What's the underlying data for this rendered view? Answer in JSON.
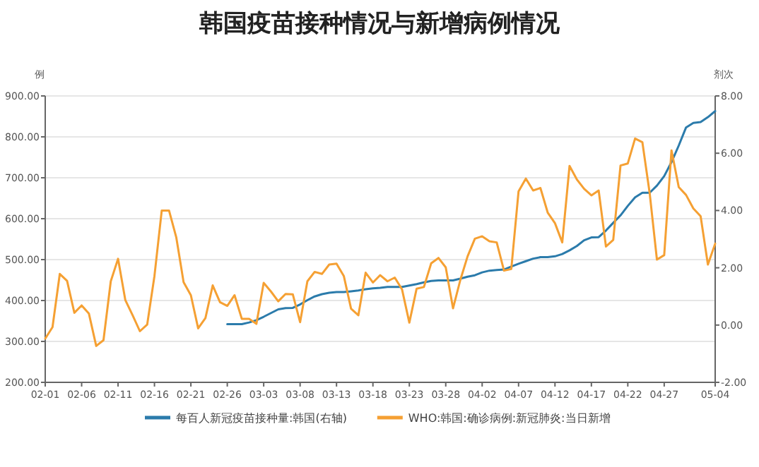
{
  "chart_data": {
    "type": "line",
    "title": "韩国疫苗接种情况与新增病例情况",
    "ylabel": "例",
    "y2label": "剂次",
    "categories": [
      "02-01",
      null,
      null,
      null,
      null,
      "02-06",
      null,
      null,
      null,
      null,
      "02-11",
      null,
      null,
      null,
      null,
      "02-16",
      null,
      null,
      null,
      null,
      "02-21",
      null,
      null,
      null,
      null,
      "02-26",
      null,
      null,
      null,
      null,
      "03-03",
      null,
      null,
      null,
      null,
      "03-08",
      null,
      null,
      null,
      null,
      "03-13",
      null,
      null,
      null,
      null,
      "03-18",
      null,
      null,
      null,
      null,
      "03-23",
      null,
      null,
      null,
      null,
      "03-28",
      null,
      null,
      null,
      null,
      "04-02",
      null,
      null,
      null,
      null,
      "04-07",
      null,
      null,
      null,
      null,
      "04-12",
      null,
      null,
      null,
      null,
      "04-17",
      null,
      null,
      null,
      null,
      "04-22",
      null,
      null,
      null,
      null,
      "04-27",
      null,
      null,
      null,
      null,
      null,
      null,
      "05-04"
    ],
    "series": [
      {
        "name": "每百人新冠疫苗接种量:韩国(右轴)",
        "color": "#2b7bab",
        "axis": "y2",
        "values": [
          null,
          null,
          null,
          null,
          null,
          null,
          null,
          null,
          null,
          null,
          null,
          null,
          null,
          null,
          null,
          null,
          null,
          null,
          null,
          null,
          null,
          null,
          null,
          null,
          null,
          0.03,
          0.03,
          0.03,
          0.09,
          0.17,
          0.29,
          0.42,
          0.55,
          0.59,
          0.6,
          0.72,
          0.87,
          1.0,
          1.08,
          1.13,
          1.15,
          1.15,
          1.18,
          1.21,
          1.25,
          1.28,
          1.3,
          1.33,
          1.33,
          1.33,
          1.38,
          1.43,
          1.49,
          1.54,
          1.56,
          1.56,
          1.56,
          1.62,
          1.69,
          1.74,
          1.84,
          1.9,
          1.92,
          1.94,
          2.04,
          2.14,
          2.23,
          2.32,
          2.37,
          2.37,
          2.4,
          2.48,
          2.61,
          2.76,
          2.96,
          3.06,
          3.07,
          3.3,
          3.57,
          3.83,
          4.16,
          4.46,
          4.62,
          4.62,
          4.87,
          5.2,
          5.69,
          6.27,
          6.9,
          7.06,
          7.09,
          7.26,
          7.47
        ]
      },
      {
        "name": "WHO:韩国:确诊病例:新冠肺炎:当日新增",
        "color": "#f5a033",
        "values": [
          307,
          335,
          465,
          448,
          370,
          388,
          368,
          289,
          303,
          447,
          502,
          401,
          364,
          325,
          341,
          460,
          620,
          620,
          554,
          445,
          413,
          332,
          357,
          437,
          396,
          387,
          413,
          355,
          355,
          343,
          443,
          422,
          398,
          416,
          415,
          347,
          447,
          470,
          465,
          488,
          490,
          460,
          380,
          364,
          468,
          444,
          462,
          447,
          456,
          427,
          346,
          429,
          433,
          491,
          504,
          481,
          381,
          450,
          508,
          551,
          557,
          545,
          542,
          473,
          477,
          667,
          698,
          669,
          675,
          615,
          589,
          542,
          729,
          696,
          673,
          657,
          669,
          532,
          548,
          730,
          735,
          796,
          787,
          663,
          500,
          511,
          767,
          677,
          658,
          625,
          606,
          488,
          539
        ]
      }
    ],
    "ylim": [
      200,
      900
    ],
    "yticks": [
      {
        "value": 200,
        "label": "200.00"
      },
      {
        "value": 300,
        "label": "300.00"
      },
      {
        "value": 400,
        "label": "400.00"
      },
      {
        "value": 500,
        "label": "500.00"
      },
      {
        "value": 600,
        "label": "600.00"
      },
      {
        "value": 700,
        "label": "700.00"
      },
      {
        "value": 800,
        "label": "800.00"
      },
      {
        "value": 900,
        "label": "900.00"
      }
    ],
    "y2lim": [
      -2,
      8
    ],
    "y2ticks": [
      {
        "value": -2,
        "label": "-2.00"
      },
      {
        "value": 0,
        "label": "0.00"
      },
      {
        "value": 2,
        "label": "2.00"
      },
      {
        "value": 4,
        "label": "4.00"
      },
      {
        "value": 6,
        "label": "6.00"
      },
      {
        "value": 8,
        "label": "8.00"
      }
    ],
    "grid": "y",
    "legend": "bottom",
    "line_style": "solid"
  }
}
